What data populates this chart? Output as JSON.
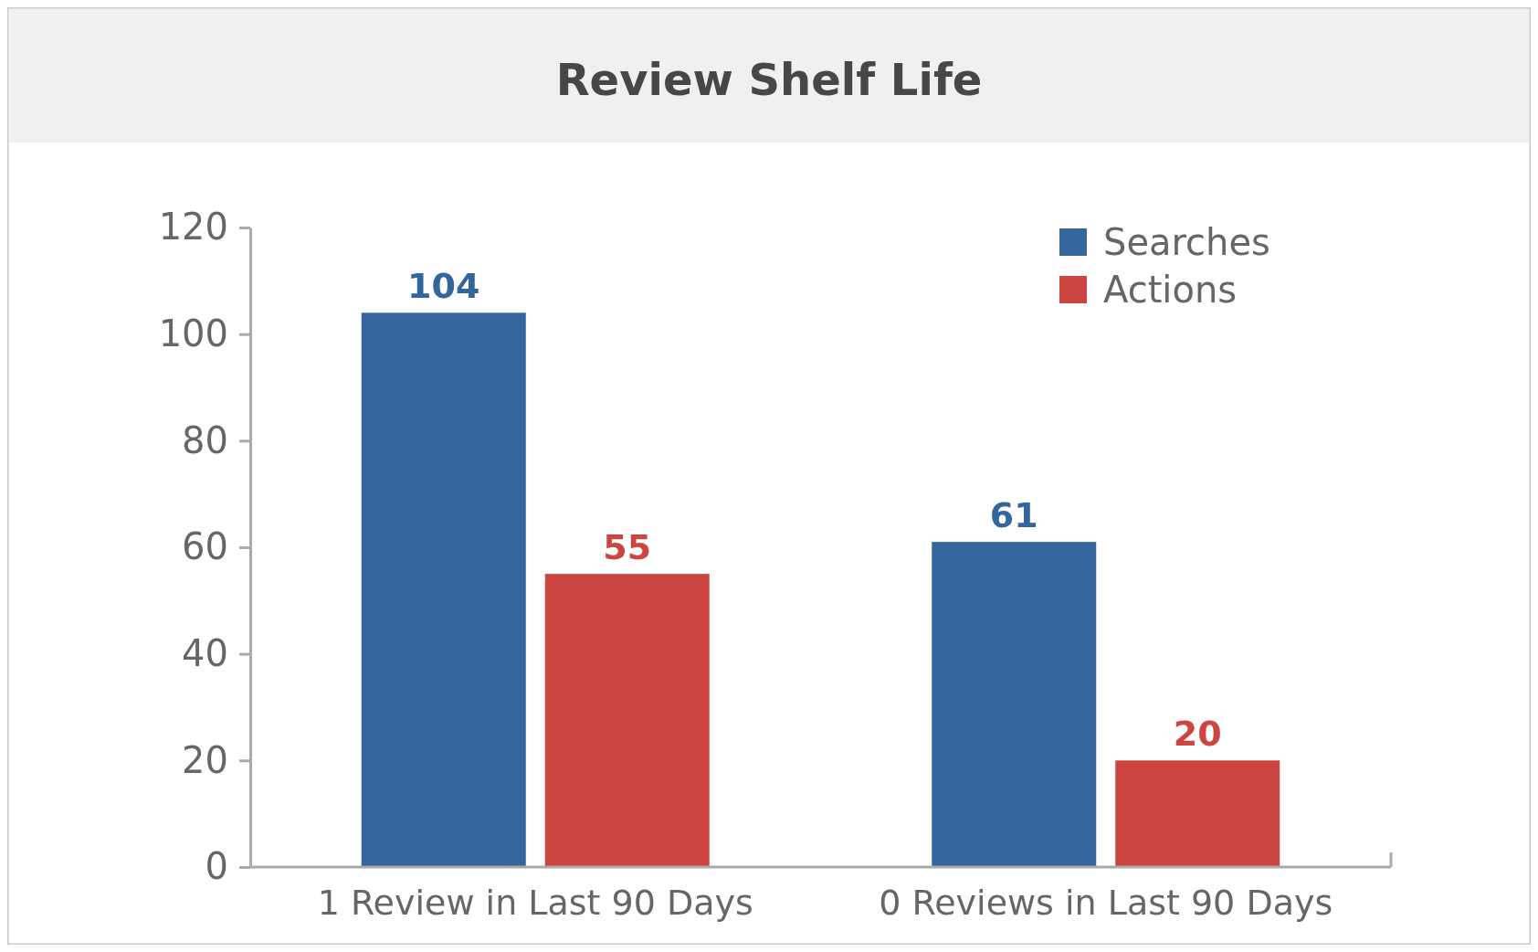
{
  "chart_data": {
    "type": "bar",
    "title": "Review Shelf Life",
    "categories": [
      "1 Review in Last 90 Days",
      "0 Reviews in Last 90 Days"
    ],
    "series": [
      {
        "name": "Searches",
        "color": "#34659d",
        "values": [
          104,
          61
        ]
      },
      {
        "name": "Actions",
        "color": "#cc4541",
        "values": [
          55,
          20
        ]
      }
    ],
    "ylim": [
      0,
      120
    ],
    "yticks": [
      0,
      20,
      40,
      60,
      80,
      100,
      120
    ],
    "grid": false,
    "legend": "top right",
    "data_labels": true
  }
}
